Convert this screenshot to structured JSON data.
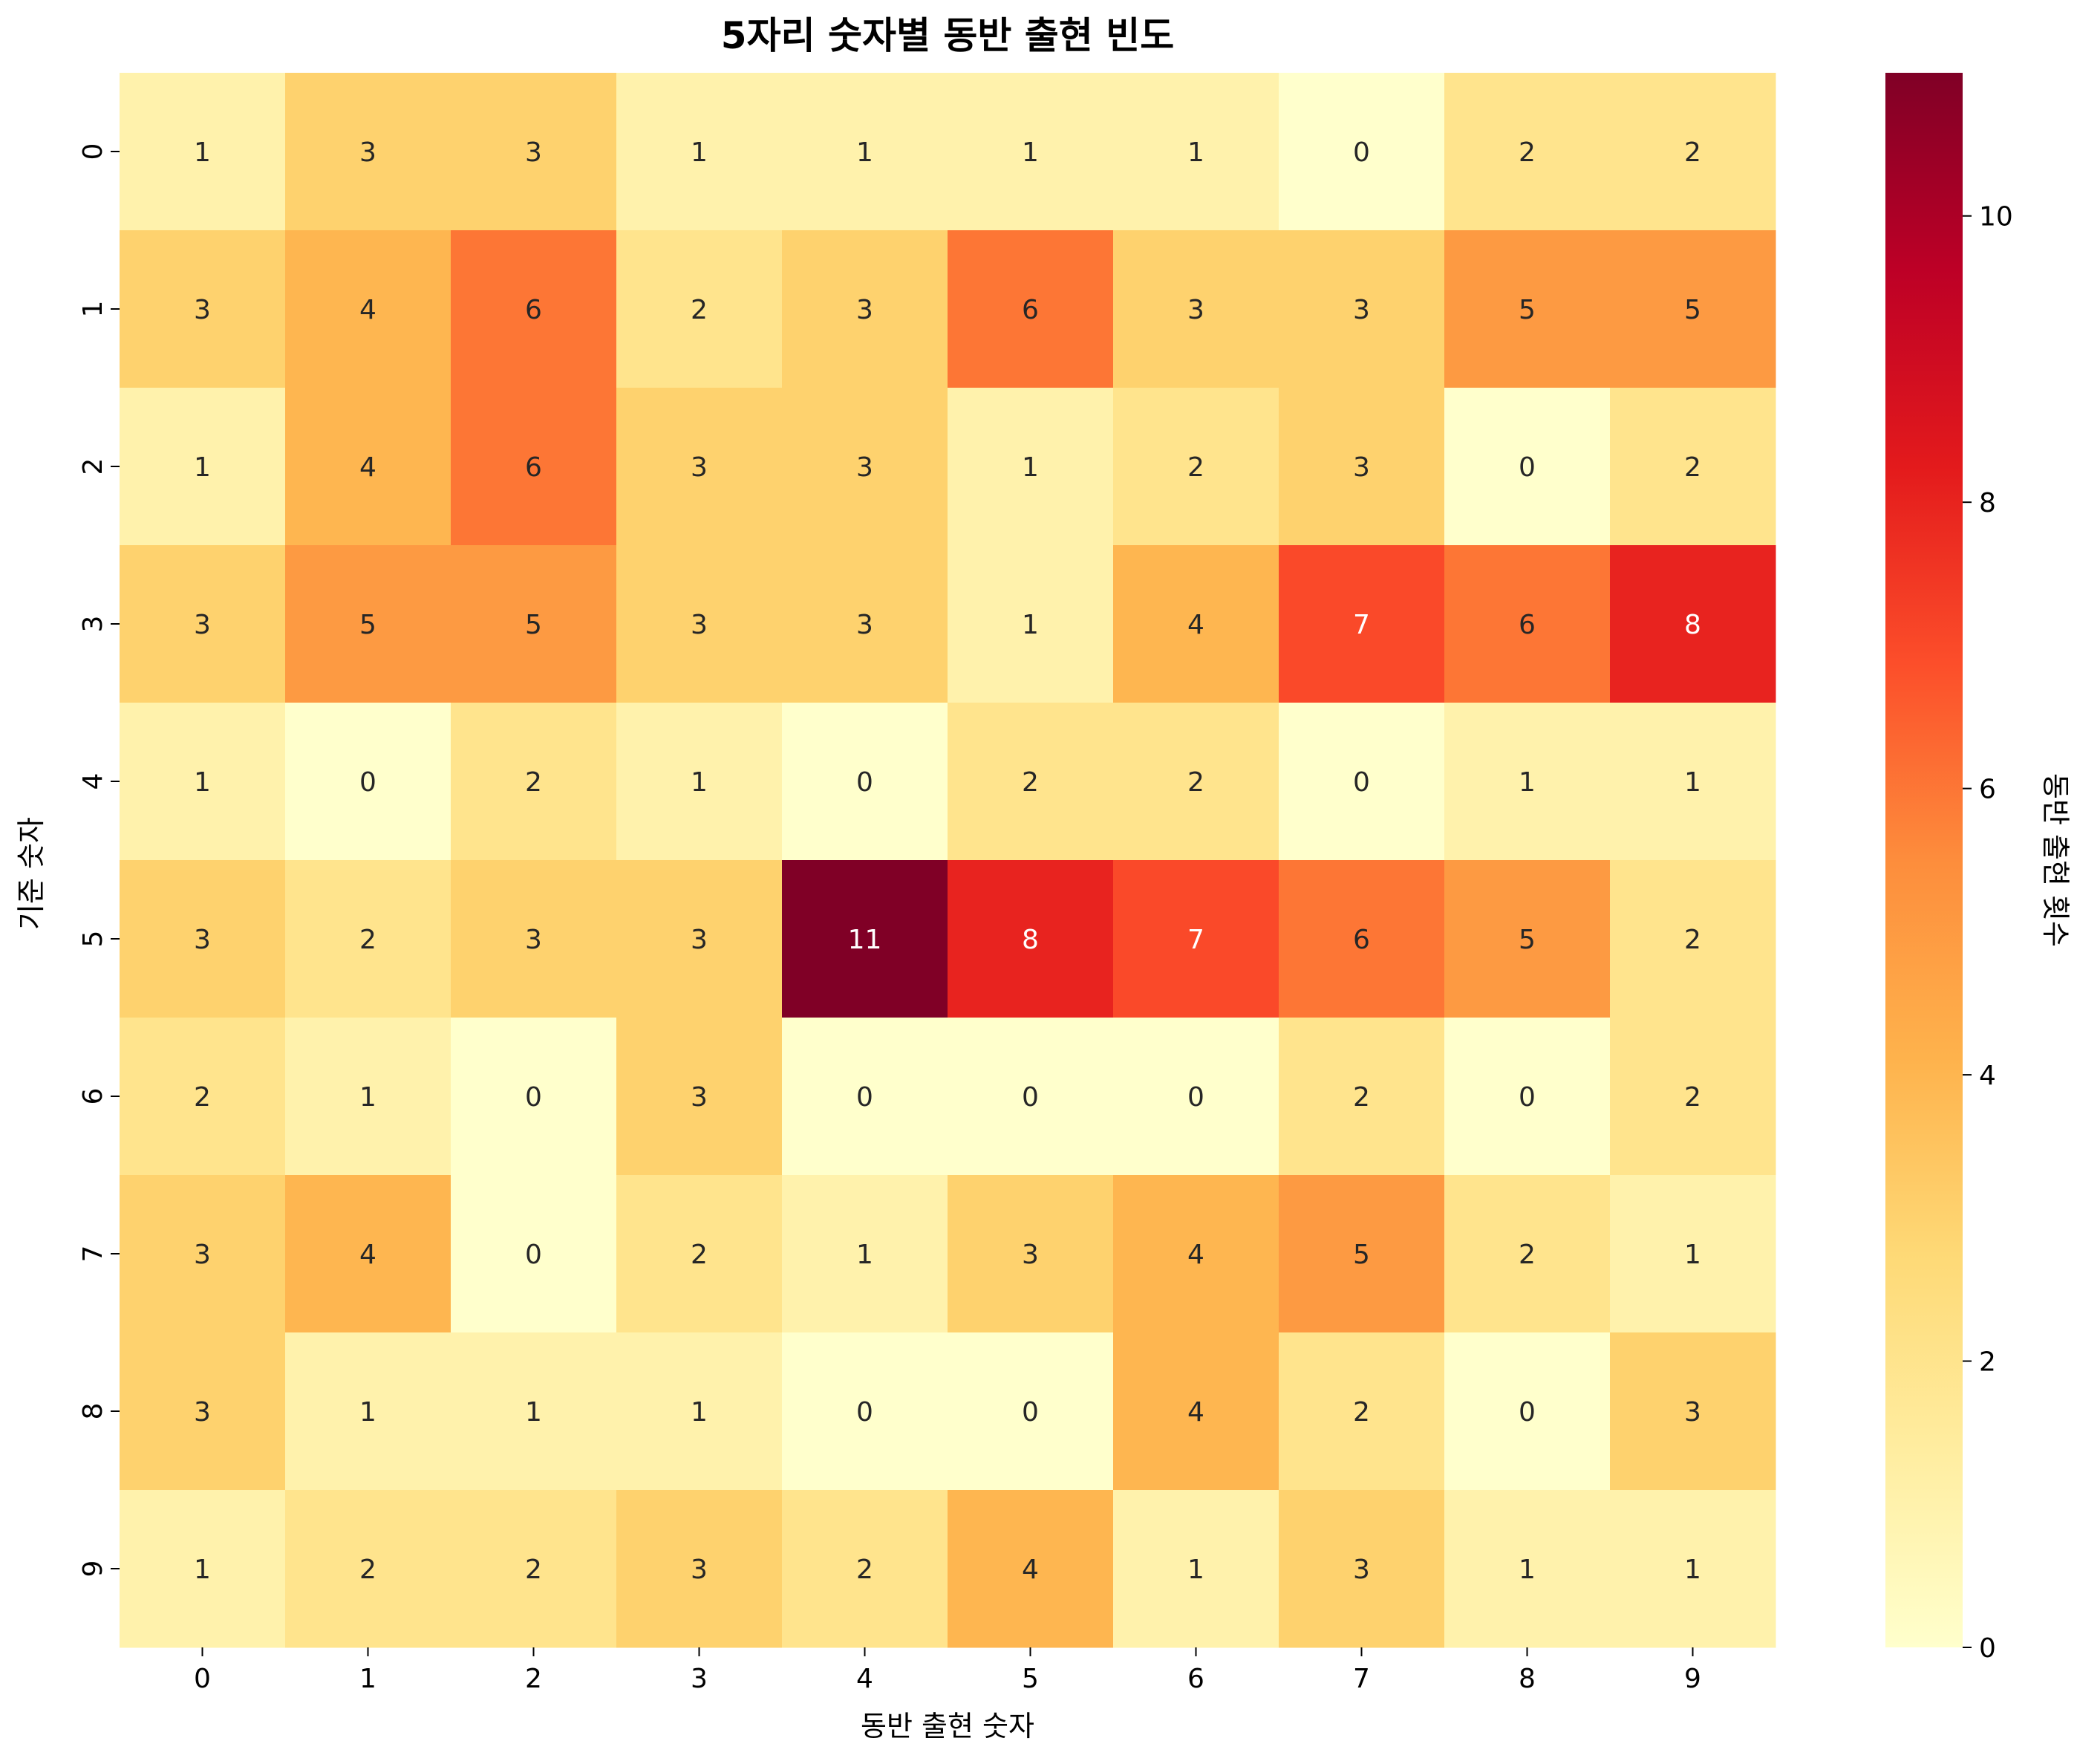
{
  "chart_data": {
    "type": "heatmap",
    "title": "5자리 숫자별 동반 출현 빈도",
    "xlabel": "동반 출현 숫자",
    "ylabel": "기준 숫자",
    "x_categories": [
      "0",
      "1",
      "2",
      "3",
      "4",
      "5",
      "6",
      "7",
      "8",
      "9"
    ],
    "y_categories": [
      "0",
      "1",
      "2",
      "3",
      "4",
      "5",
      "6",
      "7",
      "8",
      "9"
    ],
    "values": [
      [
        1,
        3,
        3,
        1,
        1,
        1,
        1,
        0,
        2,
        2
      ],
      [
        3,
        4,
        6,
        2,
        3,
        6,
        3,
        3,
        5,
        5
      ],
      [
        1,
        4,
        6,
        3,
        3,
        1,
        2,
        3,
        0,
        2
      ],
      [
        3,
        5,
        5,
        3,
        3,
        1,
        4,
        7,
        6,
        8
      ],
      [
        1,
        0,
        2,
        1,
        0,
        2,
        2,
        0,
        1,
        1
      ],
      [
        3,
        2,
        3,
        3,
        11,
        8,
        7,
        6,
        5,
        2
      ],
      [
        2,
        1,
        0,
        3,
        0,
        0,
        0,
        2,
        0,
        2
      ],
      [
        3,
        4,
        0,
        2,
        1,
        3,
        4,
        5,
        2,
        1
      ],
      [
        3,
        1,
        1,
        1,
        0,
        0,
        4,
        2,
        0,
        3
      ],
      [
        1,
        2,
        2,
        3,
        2,
        4,
        1,
        3,
        1,
        1
      ]
    ],
    "value_range": [
      0,
      11
    ],
    "colormap": "YlOrRd",
    "colorbar": {
      "label": "동반 출현 횟수",
      "ticks": [
        0,
        2,
        4,
        6,
        8,
        10
      ]
    },
    "grid": false
  }
}
